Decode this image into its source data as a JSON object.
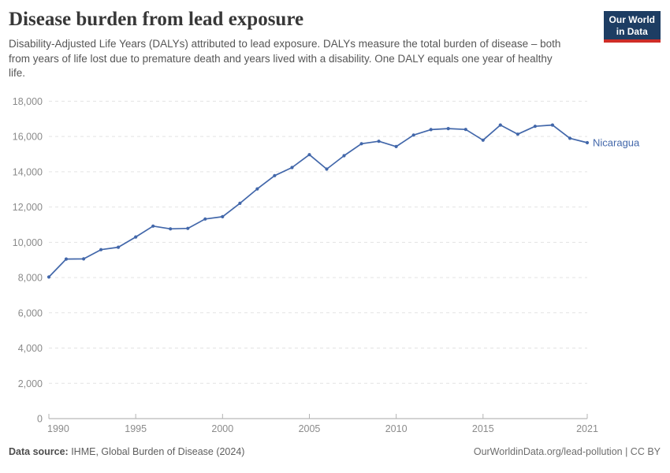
{
  "header": {
    "title": "Disease burden from lead exposure",
    "subtitle": "Disability-Adjusted Life Years (DALYs) attributed to lead exposure. DALYs measure the total burden of disease – both from years of life lost due to premature death and years lived with a disability. One DALY equals one year of healthy life."
  },
  "logo": {
    "line1": "Our World",
    "line2": "in Data",
    "bg_color": "#1d3d63",
    "accent_color": "#cf2d27"
  },
  "chart_data": {
    "type": "line",
    "title": "Disease burden from lead exposure",
    "xlabel": "",
    "ylabel": "DALYs",
    "ylim": [
      0,
      18000
    ],
    "yticks": [
      0,
      2000,
      4000,
      6000,
      8000,
      10000,
      12000,
      14000,
      16000,
      18000
    ],
    "xticks": [
      1990,
      1995,
      2000,
      2005,
      2010,
      2015,
      2021
    ],
    "grid": "horizontal-dashed",
    "legend": "line-end-label",
    "x": [
      1990,
      1991,
      1992,
      1993,
      1994,
      1995,
      1996,
      1997,
      1998,
      1999,
      2000,
      2001,
      2002,
      2003,
      2004,
      2005,
      2006,
      2007,
      2008,
      2009,
      2010,
      2011,
      2012,
      2013,
      2014,
      2015,
      2016,
      2017,
      2018,
      2019,
      2020,
      2021
    ],
    "series": [
      {
        "name": "Nicaragua",
        "color": "#4267aa",
        "values": [
          8030,
          9050,
          9060,
          9580,
          9720,
          10300,
          10920,
          10760,
          10790,
          11320,
          11450,
          12210,
          13030,
          13780,
          14240,
          14970,
          14150,
          14910,
          15590,
          15730,
          15430,
          16080,
          16390,
          16450,
          16400,
          15790,
          16650,
          16130,
          16580,
          16650,
          15900,
          15650
        ]
      }
    ]
  },
  "footer": {
    "source_label": "Data source:",
    "source_text": " IHME, Global Burden of Disease (2024)",
    "credit_text": "OurWorldinData.org/lead-pollution | CC BY"
  }
}
